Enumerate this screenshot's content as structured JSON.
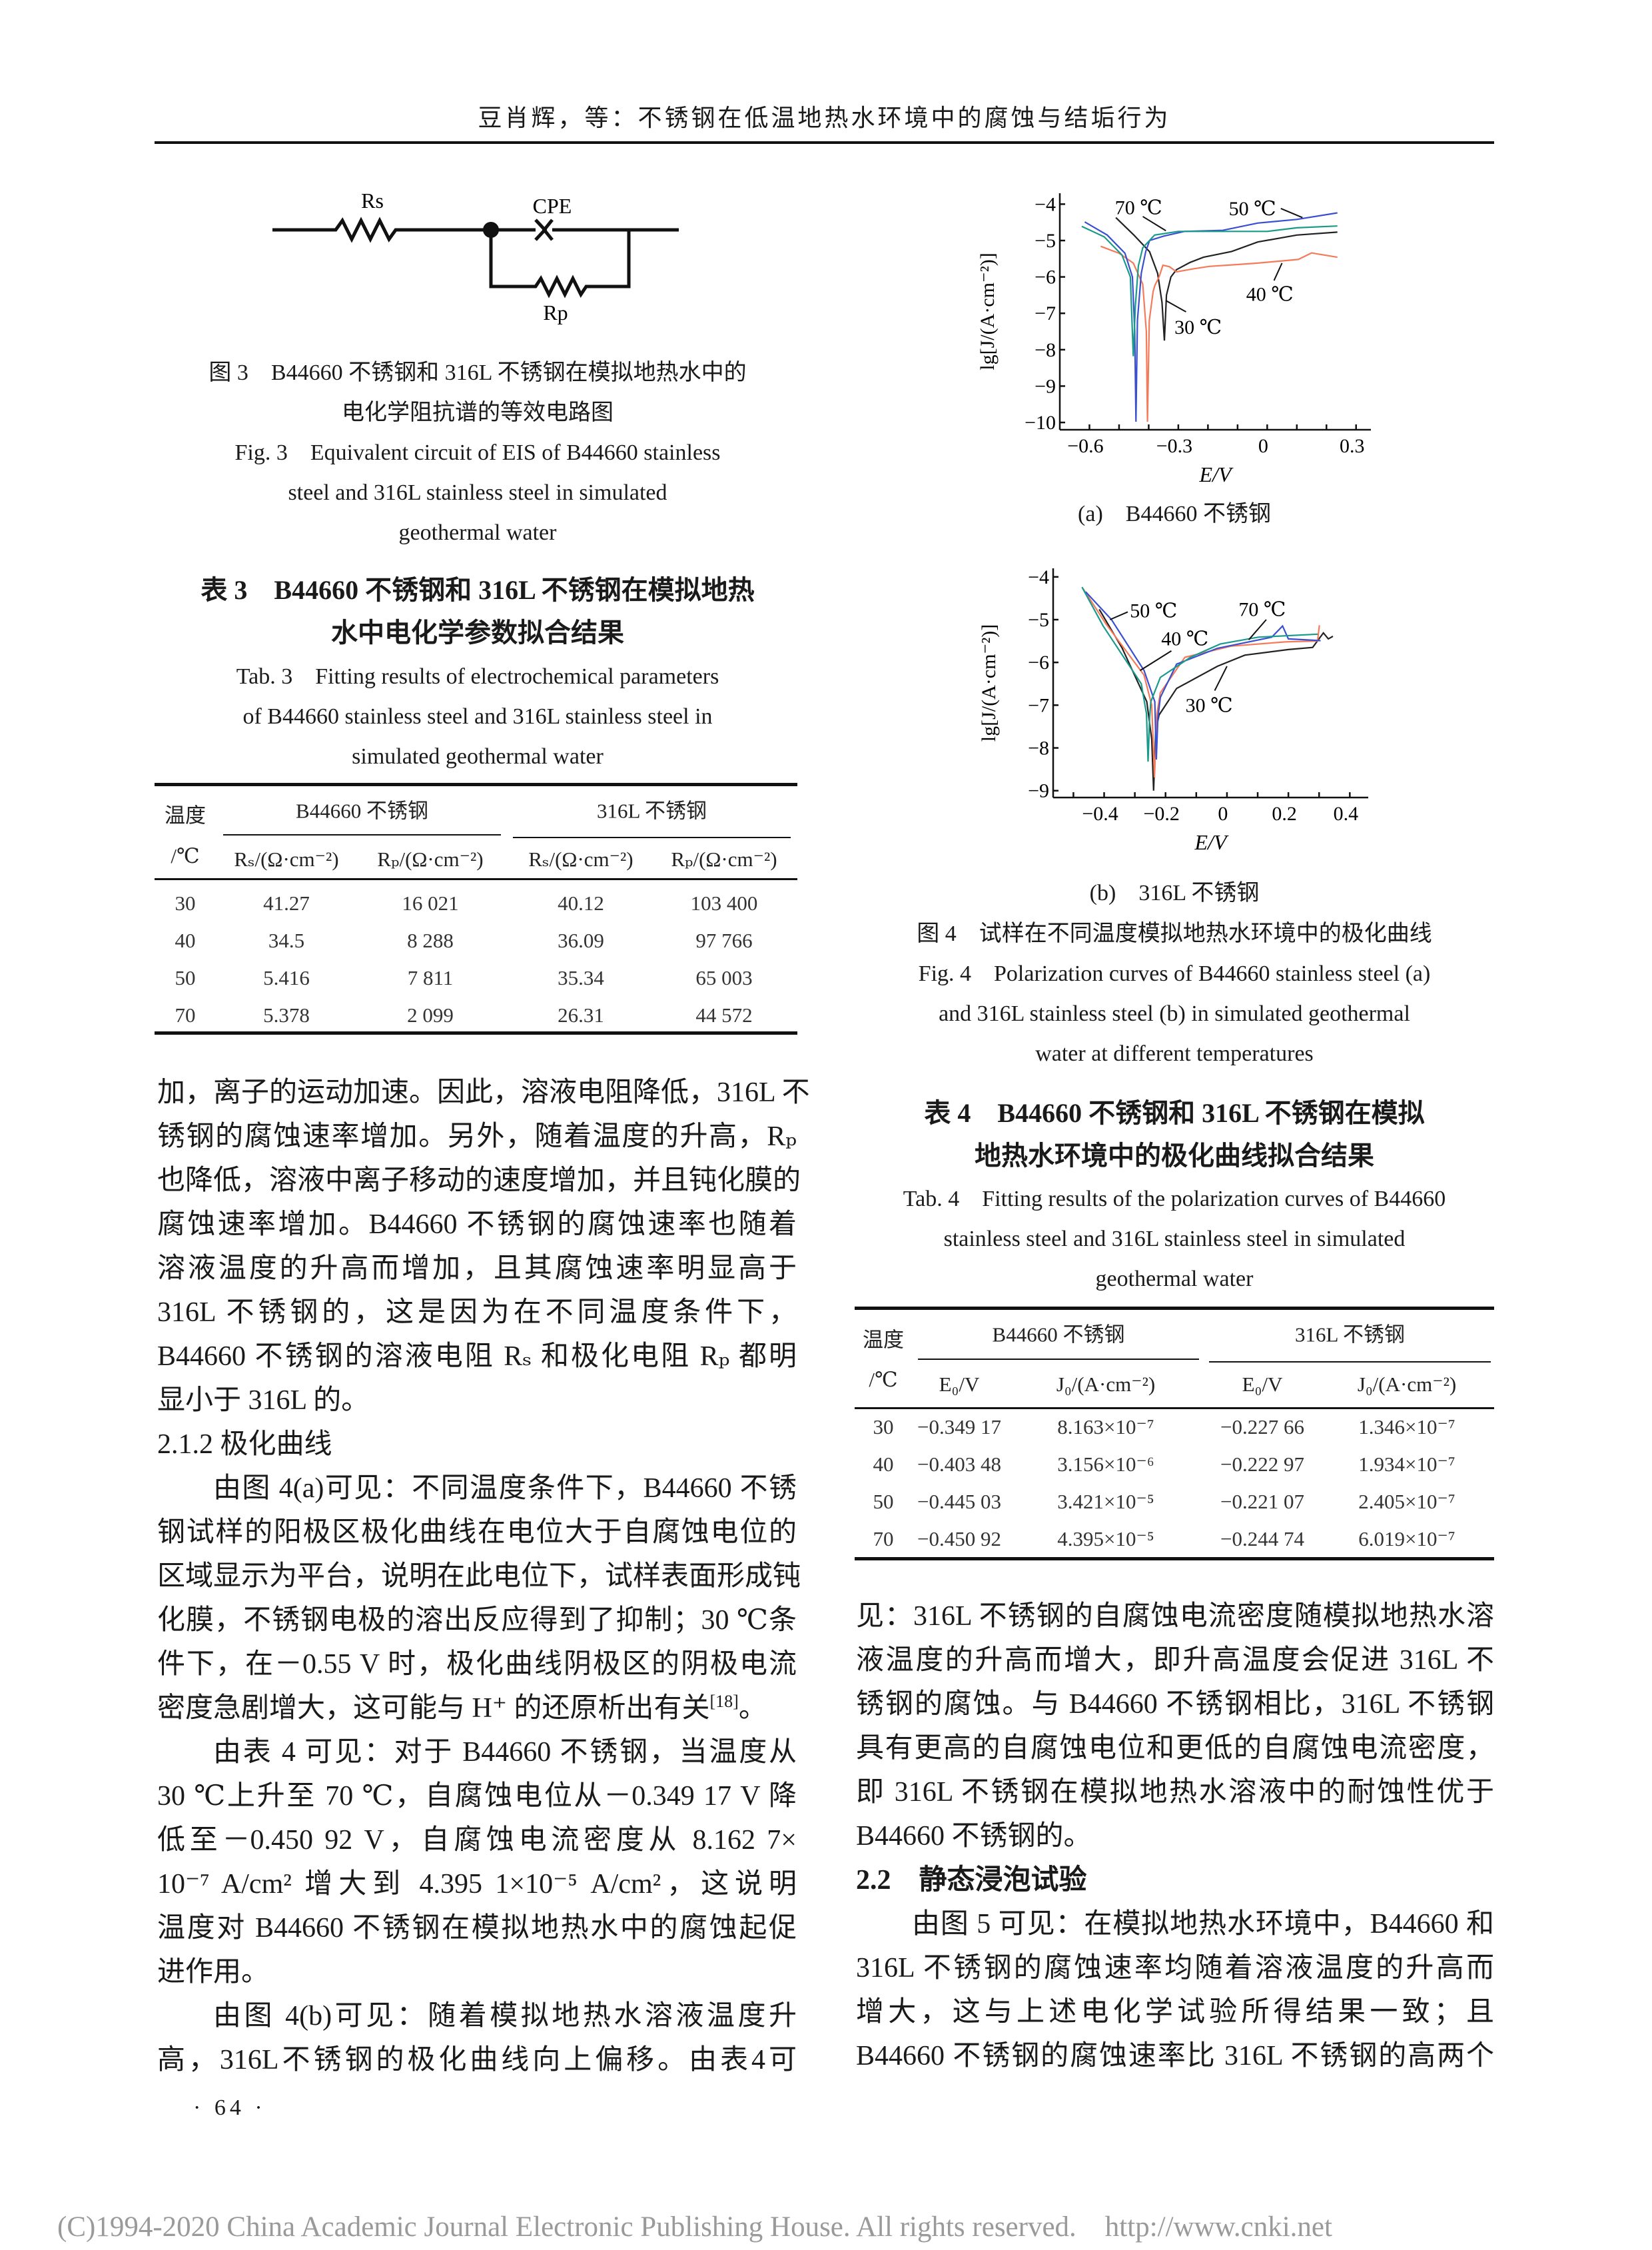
{
  "header": {
    "running_title": "豆肖辉，等：不锈钢在低温地热水环境中的腐蚀与结垢行为"
  },
  "figure3": {
    "circuit_labels": {
      "rs": "Rs",
      "cpe": "CPE",
      "rp": "Rp"
    },
    "caption_lines": [
      "图 3　B44660 不锈钢和 316L 不锈钢在模拟地热水中的",
      "电化学阻抗谱的等效电路图",
      "Fig. 3　Equivalent circuit of EIS of B44660 stainless",
      "steel and 316L stainless steel in simulated",
      "geothermal water"
    ]
  },
  "table3": {
    "title_lines": [
      "表 3　B44660 不锈钢和 316L 不锈钢在模拟地热",
      "水中电化学参数拟合结果"
    ],
    "en_title_lines": [
      "Tab. 3　Fitting results of electrochemical parameters",
      "of B44660 stainless steel and 316L stainless steel in",
      "simulated geothermal water"
    ],
    "temp_header": [
      "温度",
      "/℃"
    ],
    "groups": [
      "B44660 不锈钢",
      "316L 不锈钢"
    ],
    "columns": [
      "Rₛ/(Ω·cm⁻²)",
      "Rₚ/(Ω·cm⁻²)",
      "Rₛ/(Ω·cm⁻²)",
      "Rₚ/(Ω·cm⁻²)"
    ],
    "rows": [
      [
        "30",
        "41.27",
        "16 021",
        "40.12",
        "103 400"
      ],
      [
        "40",
        "34.5",
        "8 288",
        "36.09",
        "97 766"
      ],
      [
        "50",
        "5.416",
        "7 811",
        "35.34",
        "65 003"
      ],
      [
        "70",
        "5.378",
        "2 099",
        "26.31",
        "44 572"
      ]
    ]
  },
  "left_column": {
    "paragraphs": [
      {
        "lines": [
          "加，离子的运动加速。因此，溶液电阻降低，316L 不",
          "锈钢的腐蚀速率增加。另外，随着温度的升高，Rₚ",
          "也降低，溶液中离子移动的速度增加，并且钝化膜的",
          "腐蚀速率增加。B44660 不锈钢的腐蚀速率也随着",
          "溶液温度的升高而增加，且其腐蚀速率明显高于",
          "316L 不锈钢的，这是因为在不同温度条件下，",
          "B44660 不锈钢的溶液电阻 Rₛ 和极化电阻 Rₚ 都明",
          "显小于 316L 的。"
        ]
      },
      {
        "heading": "2.1.2 极化曲线"
      },
      {
        "lines": [
          "由图 4(a)可见：不同温度条件下，B44660 不锈",
          "钢试样的阳极区极化曲线在电位大于自腐蚀电位的",
          "区域显示为平台，说明在此电位下，试样表面形成钝",
          "化膜，不锈钢电极的溶出反应得到了抑制；30 ℃条",
          "件下，在－0.55 V 时，极化曲线阴极区的阴极电流",
          [
            {
              "t": "密度急剧增大，这可能与 H⁺ 的还原析出有关"
            },
            {
              "t": "[18]",
              "sup": true
            },
            {
              "t": "。"
            }
          ]
        ]
      },
      {
        "lines": [
          "由表 4 可见：对于 B44660 不锈钢，当温度从",
          "30 ℃上升至 70 ℃，自腐蚀电位从－0.349 17 V 降",
          "低至－0.450 92 V，自腐蚀电流密度从 8.162 7×",
          "10⁻⁷ A/cm² 增大到 4.395 1×10⁻⁵ A/cm²，这说明",
          "温度对 B44660 不锈钢在模拟地热水中的腐蚀起促",
          "进作用。"
        ]
      },
      {
        "lines": [
          "由图 4(b)可见：随着模拟地热水溶液温度升",
          "高，316L不锈钢的极化曲线向上偏移。由表4可"
        ]
      }
    ]
  },
  "page_number": "· 64 ·",
  "figure4": {
    "caption_a": "(a)　B44660 不锈钢",
    "caption_b": "(b)　316L 不锈钢",
    "caption_lines": [
      "图 4　试样在不同温度模拟地热水环境中的极化曲线",
      "Fig. 4　Polarization curves of B44660 stainless steel (a)",
      "and 316L stainless steel (b) in simulated geothermal",
      "water at different temperatures"
    ]
  },
  "table4": {
    "title_lines": [
      "表 4　B44660 不锈钢和 316L 不锈钢在模拟",
      "地热水环境中的极化曲线拟合结果"
    ],
    "en_title_lines": [
      "Tab. 4　Fitting results of the polarization curves of B44660",
      "stainless steel and 316L stainless steel in simulated",
      "geothermal water"
    ],
    "temp_header": [
      "温度",
      "/℃"
    ],
    "groups": [
      "B44660 不锈钢",
      "316L 不锈钢"
    ],
    "columns": [
      "E₀/V",
      "J₀/(A·cm⁻²)",
      "E₀/V",
      "J₀/(A·cm⁻²)"
    ],
    "rows": [
      [
        "30",
        "−0.349 17",
        "8.163×10⁻⁷",
        "−0.227 66",
        "1.346×10⁻⁷"
      ],
      [
        "40",
        "−0.403 48",
        "3.156×10⁻⁶",
        "−0.222 97",
        "1.934×10⁻⁷"
      ],
      [
        "50",
        "−0.445 03",
        "3.421×10⁻⁵",
        "−0.221 07",
        "2.405×10⁻⁷"
      ],
      [
        "70",
        "−0.450 92",
        "4.395×10⁻⁵",
        "−0.244 74",
        "6.019×10⁻⁷"
      ]
    ]
  },
  "right_column": {
    "paragraphs": [
      {
        "lines": [
          "见：316L 不锈钢的自腐蚀电流密度随模拟地热水溶",
          "液温度的升高而增大，即升高温度会促进 316L 不",
          "锈钢的腐蚀。与 B44660 不锈钢相比，316L 不锈钢",
          "具有更高的自腐蚀电位和更低的自腐蚀电流密度，",
          "即 316L 不锈钢在模拟地热水溶液中的耐蚀性优于",
          "B44660 不锈钢的。"
        ]
      },
      {
        "heading": "2.2　静态浸泡试验",
        "bold": true
      },
      {
        "lines": [
          "由图 5 可见：在模拟地热水环境中，B44660 和",
          "316L 不锈钢的腐蚀速率均随着溶液温度的升高而",
          "增大，这与上述电化学试验所得结果一致；且",
          "B44660 不锈钢的腐蚀速率比 316L 不锈钢的高两个"
        ]
      }
    ]
  },
  "footer": {
    "copyright": "(C)1994-2020 China Academic Journal Electronic Publishing House. All rights reserved.",
    "url": "http://www.cnki.net"
  },
  "chart_data": [
    {
      "type": "line",
      "panel": "a",
      "xlabel": "E/V",
      "ylabel": "lg[J/(A·cm⁻²)]",
      "xlim": [
        -0.7,
        0.35
      ],
      "ylim": [
        -10.2,
        -3.7
      ],
      "xticks": [
        -0.6,
        -0.3,
        0,
        0.3
      ],
      "xtick_labels": [
        "−0.6",
        "−0.3",
        "0",
        "0.3"
      ],
      "xminor_step": 0.1,
      "yticks": [
        -4,
        -5,
        -6,
        -7,
        -8,
        -9,
        -10
      ],
      "ytick_labels": [
        "−4",
        "−5",
        "−6",
        "−7",
        "−8",
        "−9",
        "−10"
      ],
      "grid": false,
      "series": [
        {
          "name": "30 ℃",
          "color": "#222222",
          "points": [
            [
              -0.511,
              -4.37
            ],
            [
              -0.45,
              -4.85
            ],
            [
              -0.397,
              -5.31
            ],
            [
              -0.37,
              -5.9
            ],
            [
              -0.355,
              -6.7
            ],
            [
              -0.347,
              -7.75
            ],
            [
              -0.34,
              -6.5
            ],
            [
              -0.325,
              -6.0
            ],
            [
              -0.306,
              -5.8
            ],
            [
              -0.26,
              -5.6
            ],
            [
              -0.215,
              -5.46
            ],
            [
              -0.12,
              -5.3
            ],
            [
              -0.032,
              -5.04
            ],
            [
              0.1,
              -4.85
            ],
            [
              0.237,
              -4.77
            ]
          ]
        },
        {
          "name": "40 ℃",
          "color": "#f47a5a",
          "points": [
            [
              -0.562,
              -5.16
            ],
            [
              -0.5,
              -5.35
            ],
            [
              -0.452,
              -5.62
            ],
            [
              -0.42,
              -6.2
            ],
            [
              -0.408,
              -7.5
            ],
            [
              -0.404,
              -9.98
            ],
            [
              -0.398,
              -7.2
            ],
            [
              -0.385,
              -6.4
            ],
            [
              -0.379,
              -6.23
            ],
            [
              -0.365,
              -6.0
            ],
            [
              -0.352,
              -5.68
            ],
            [
              -0.33,
              -5.72
            ],
            [
              -0.306,
              -5.86
            ],
            [
              -0.25,
              -5.78
            ],
            [
              -0.196,
              -5.71
            ],
            [
              -0.1,
              -5.66
            ],
            [
              -0.032,
              -5.62
            ],
            [
              0.105,
              -5.52
            ],
            [
              0.15,
              -5.34
            ],
            [
              0.237,
              -5.46
            ]
          ]
        },
        {
          "name": "50 ℃",
          "color": "#3a4fd0",
          "points": [
            [
              -0.616,
              -4.49
            ],
            [
              -0.54,
              -4.85
            ],
            [
              -0.48,
              -5.35
            ],
            [
              -0.455,
              -6.0
            ],
            [
              -0.447,
              -7.5
            ],
            [
              -0.443,
              -9.98
            ],
            [
              -0.438,
              -7.2
            ],
            [
              -0.425,
              -5.9
            ],
            [
              -0.41,
              -5.3
            ],
            [
              -0.397,
              -5.0
            ],
            [
              -0.35,
              -4.88
            ],
            [
              -0.279,
              -4.75
            ],
            [
              -0.15,
              -4.72
            ],
            [
              -0.032,
              -4.52
            ],
            [
              0.1,
              -4.42
            ],
            [
              0.237,
              -4.24
            ]
          ]
        },
        {
          "name": "70 ℃",
          "color": "#1a9a8a",
          "points": [
            [
              -0.626,
              -4.61
            ],
            [
              -0.55,
              -4.9
            ],
            [
              -0.49,
              -5.4
            ],
            [
              -0.462,
              -6.0
            ],
            [
              -0.452,
              -8.18
            ],
            [
              -0.445,
              -6.8
            ],
            [
              -0.435,
              -5.7
            ],
            [
              -0.42,
              -5.2
            ],
            [
              -0.38,
              -4.85
            ],
            [
              -0.3,
              -4.75
            ],
            [
              0,
              -4.75
            ],
            [
              0.1,
              -4.65
            ],
            [
              0.237,
              -4.6
            ]
          ]
        }
      ],
      "annotations": [
        {
          "text": "70 ℃",
          "at": [
            -0.434,
            -4.09
          ],
          "leader": [
            [
              -0.42,
              -4.34
            ],
            [
              -0.342,
              -4.73
            ]
          ]
        },
        {
          "text": "50 ℃",
          "at": [
            -0.05,
            -4.12
          ],
          "leader": [
            [
              0.046,
              -4.12
            ],
            [
              0.119,
              -4.37
            ]
          ]
        },
        {
          "text": "40 ℃",
          "at": [
            0.009,
            -6.47
          ],
          "leader": [
            [
              0.023,
              -6.1
            ],
            [
              0.05,
              -5.62
            ]
          ]
        },
        {
          "text": "30 ℃",
          "at": [
            -0.233,
            -7.38
          ],
          "leader": [
            [
              -0.274,
              -6.96
            ],
            [
              -0.342,
              -6.65
            ]
          ]
        }
      ]
    },
    {
      "type": "line",
      "panel": "b",
      "xlabel": "E/V",
      "ylabel": "lg[J/(A·cm⁻²)]",
      "xlim": [
        -0.566,
        0.46
      ],
      "ylim": [
        -9.16,
        -3.8
      ],
      "xticks": [
        -0.4,
        -0.2,
        0,
        0.2,
        0.4
      ],
      "xtick_labels": [
        "−0.4",
        "−0.2",
        "0",
        "0.2",
        "0.4"
      ],
      "xminor_step": 0.1,
      "yticks": [
        -4,
        -5,
        -6,
        -7,
        -8,
        -9
      ],
      "ytick_labels": [
        "−4",
        "−5",
        "−6",
        "−7",
        "−8",
        "−9"
      ],
      "grid": false,
      "series": [
        {
          "name": "30 ℃",
          "color": "#222222",
          "points": [
            [
              -0.416,
              -4.76
            ],
            [
              -0.341,
              -5.67
            ],
            [
              -0.261,
              -6.92
            ],
            [
              -0.245,
              -7.8
            ],
            [
              -0.239,
              -9.0
            ],
            [
              -0.232,
              -7.6
            ],
            [
              -0.221,
              -7.23
            ],
            [
              -0.164,
              -6.61
            ],
            [
              -0.031,
              -6.09
            ],
            [
              0.058,
              -5.83
            ],
            [
              0.2,
              -5.7
            ],
            [
              0.279,
              -5.65
            ],
            [
              0.314,
              -5.31
            ],
            [
              0.33,
              -5.45
            ],
            [
              0.345,
              -5.39
            ]
          ]
        },
        {
          "name": "40 ℃",
          "color": "#f47a5a",
          "points": [
            [
              -0.469,
              -4.27
            ],
            [
              -0.394,
              -5.1
            ],
            [
              -0.27,
              -6.3
            ],
            [
              -0.245,
              -7.0
            ],
            [
              -0.236,
              -8.69
            ],
            [
              -0.228,
              -7.2
            ],
            [
              -0.217,
              -6.71
            ],
            [
              -0.137,
              -5.88
            ],
            [
              0.013,
              -5.62
            ],
            [
              0.19,
              -5.52
            ],
            [
              0.295,
              -5.5
            ],
            [
              0.301,
              -5.13
            ]
          ]
        },
        {
          "name": "50 ℃",
          "color": "#3a4fd0",
          "points": [
            [
              -0.46,
              -4.35
            ],
            [
              -0.376,
              -5.0
            ],
            [
              -0.27,
              -6.19
            ],
            [
              -0.235,
              -6.92
            ],
            [
              -0.23,
              -8.27
            ],
            [
              -0.225,
              -7.3
            ],
            [
              -0.217,
              -6.82
            ],
            [
              -0.164,
              -6.04
            ],
            [
              -0.031,
              -5.67
            ],
            [
              0.146,
              -5.41
            ],
            [
              0.181,
              -5.15
            ],
            [
              0.2,
              -5.45
            ],
            [
              0.305,
              -5.49
            ]
          ]
        },
        {
          "name": "70 ℃",
          "color": "#1a9a8a",
          "points": [
            [
              -0.472,
              -4.24
            ],
            [
              -0.403,
              -5.15
            ],
            [
              -0.279,
              -6.5
            ],
            [
              -0.262,
              -7.2
            ],
            [
              -0.257,
              -8.32
            ],
            [
              -0.252,
              -7.3
            ],
            [
              -0.248,
              -6.92
            ],
            [
              -0.217,
              -6.35
            ],
            [
              -0.119,
              -5.88
            ],
            [
              -0.022,
              -5.57
            ],
            [
              0.102,
              -5.41
            ],
            [
              0.296,
              -5.34
            ]
          ]
        }
      ],
      "annotations": [
        {
          "text": "50 ℃",
          "at": [
            -0.239,
            -4.79
          ],
          "leader": [
            [
              -0.323,
              -4.82
            ],
            [
              -0.381,
              -5.0
            ]
          ]
        },
        {
          "text": "40 ℃",
          "at": [
            -0.137,
            -5.44
          ],
          "leader": [
            [
              -0.181,
              -5.73
            ],
            [
              -0.283,
              -6.19
            ]
          ]
        },
        {
          "text": "70 ℃",
          "at": [
            0.115,
            -4.76
          ],
          "leader": [
            [
              0.128,
              -5.0
            ],
            [
              0.071,
              -5.47
            ]
          ]
        },
        {
          "text": "30 ℃",
          "at": [
            -0.058,
            -7.0
          ],
          "leader": [
            [
              -0.04,
              -6.66
            ],
            [
              0,
              -6.09
            ]
          ]
        }
      ]
    }
  ]
}
